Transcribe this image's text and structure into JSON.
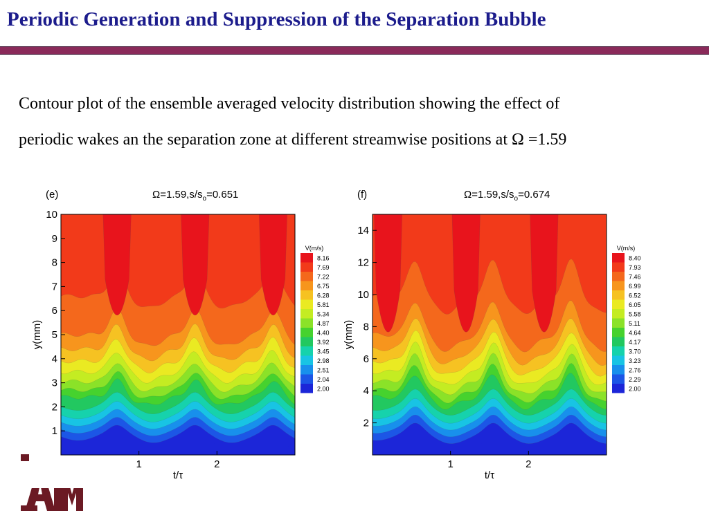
{
  "slide": {
    "title": "Periodic Generation and Suppression of the Separation Bubble",
    "description_line1": "Contour plot of the ensemble averaged velocity distribution showing the effect of",
    "description_line2": "periodic wakes an the separation zone at different streamwise positions at Ω =1.59",
    "colors": {
      "title": "#1c1c8c",
      "bar": "#8a2a5a",
      "logo": "#6b1a24"
    },
    "logo_icon": "texas-am-logo-icon"
  },
  "chart_data": [
    {
      "type": "heatmap",
      "panel_label": "(e)",
      "title": "Ω=1.59,s/so=0.651",
      "title_parts": {
        "prefix": "Ω=1.59,s/s",
        "sub": "o",
        "suffix": "=0.651"
      },
      "xlabel": "t/τ",
      "ylabel": "y(mm)",
      "xlim": [
        0,
        3
      ],
      "ylim": [
        0,
        10
      ],
      "x_ticks": [
        1,
        2
      ],
      "y_ticks": [
        1,
        2,
        3,
        4,
        5,
        6,
        7,
        8,
        9,
        10
      ],
      "legend_title": "V(m/s)",
      "legend_placement": "right",
      "levels": [
        8.16,
        7.69,
        7.22,
        6.75,
        6.28,
        5.81,
        5.34,
        4.87,
        4.4,
        3.92,
        3.45,
        2.98,
        2.51,
        2.04,
        2.0
      ],
      "level_colors": [
        "#e8141c",
        "#f23a1a",
        "#f4681c",
        "#f7951d",
        "#f6c222",
        "#eaea22",
        "#c4ec22",
        "#8be228",
        "#46d22e",
        "#22c860",
        "#16d2ac",
        "#18c4e4",
        "#1890ec",
        "#1c56e6",
        "#1c26d8"
      ],
      "wake_centers": [
        0.72,
        1.72,
        2.72
      ],
      "wake_amplitude": 1.1,
      "core_x": [
        0.72,
        1.72,
        2.72
      ],
      "core_bottom": 4.6
    },
    {
      "type": "heatmap",
      "panel_label": "(f)",
      "title": "Ω=1.59,s/so=0.674",
      "title_parts": {
        "prefix": "Ω=1.59,s/s",
        "sub": "o",
        "suffix": "=0.674"
      },
      "xlabel": "t/τ",
      "ylabel": "y(mm)",
      "xlim": [
        0,
        3
      ],
      "ylim": [
        0,
        15
      ],
      "x_ticks": [
        1,
        2
      ],
      "y_ticks": [
        2,
        4,
        6,
        8,
        10,
        12,
        14
      ],
      "legend_title": "V(m/s)",
      "legend_placement": "right",
      "levels": [
        8.4,
        7.93,
        7.46,
        6.99,
        6.52,
        6.05,
        5.58,
        5.11,
        4.64,
        4.17,
        3.7,
        3.23,
        2.76,
        2.29,
        2.0
      ],
      "level_colors": [
        "#e8141c",
        "#f23a1a",
        "#f4681c",
        "#f7951d",
        "#f6c222",
        "#eaea22",
        "#c4ec22",
        "#8be228",
        "#46d22e",
        "#22c860",
        "#16d2ac",
        "#18c4e4",
        "#1890ec",
        "#1c56e6",
        "#1c26d8"
      ],
      "wake_centers": [
        0.55,
        1.55,
        2.55
      ],
      "wake_amplitude": 1.5,
      "core_x": [
        0.2,
        1.2,
        2.2
      ],
      "core_bottom": 5.5
    }
  ]
}
